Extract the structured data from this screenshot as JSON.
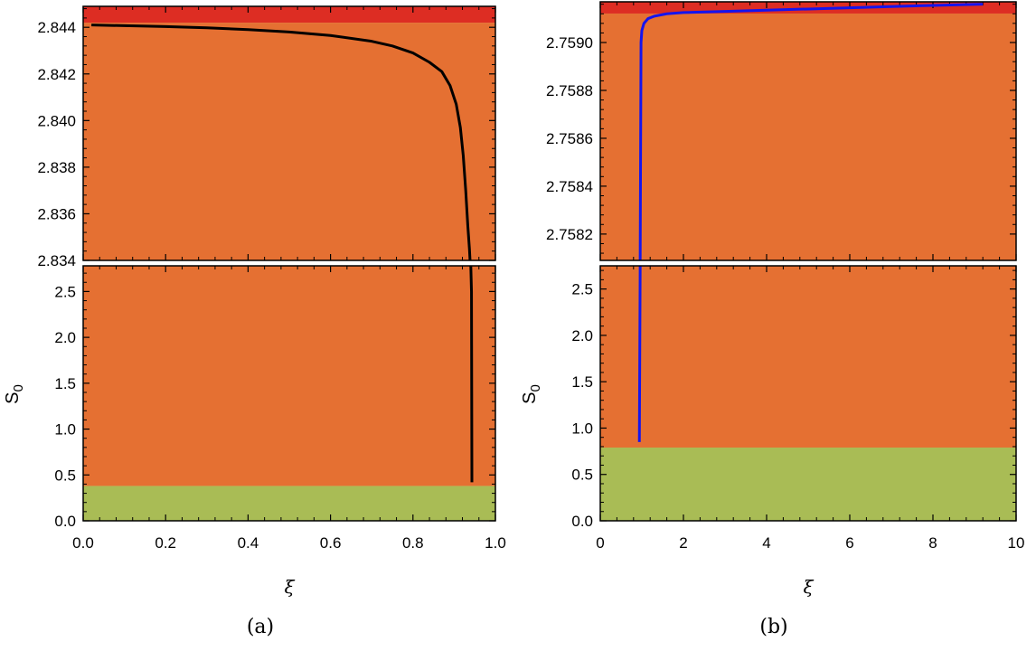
{
  "colors": {
    "red_region": "#dd2d23",
    "orange_region": "#e57032",
    "green_region": "#a9bc55",
    "series_a": "#000000",
    "series_b": "#1414ee"
  },
  "chart_data": [
    {
      "type": "line",
      "caption": "(a)",
      "xlabel": "ξ",
      "ylabel": "S",
      "ylabel_sub": "0",
      "xlim": [
        0,
        1.0
      ],
      "x_ticks": [
        "0.0",
        "0.2",
        "0.4",
        "0.6",
        "0.8",
        "1.0"
      ],
      "top_panel": {
        "ylim": [
          2.834,
          2.8449
        ],
        "y_ticks": [
          "2.834",
          "2.836",
          "2.838",
          "2.840",
          "2.842",
          "2.844"
        ],
        "regions": [
          {
            "name": "red",
            "y_from": 2.8442,
            "y_to": 2.8449
          },
          {
            "name": "orange",
            "y_from": 2.834,
            "y_to": 2.8442
          }
        ]
      },
      "bottom_panel": {
        "ylim": [
          0,
          2.78
        ],
        "y_ticks": [
          "0.0",
          "0.5",
          "1.0",
          "1.5",
          "2.0",
          "2.5"
        ],
        "regions": [
          {
            "name": "green",
            "y_from": 0,
            "y_to": 0.38
          },
          {
            "name": "orange",
            "y_from": 0.38,
            "y_to": 2.78
          }
        ]
      },
      "series": [
        {
          "color_key": "series_a",
          "x": [
            0.02,
            0.1,
            0.2,
            0.3,
            0.4,
            0.5,
            0.6,
            0.7,
            0.75,
            0.8,
            0.84,
            0.87,
            0.89,
            0.905,
            0.915,
            0.922,
            0.928,
            0.933,
            0.937,
            0.94,
            0.942,
            0.943
          ],
          "y": [
            2.8441,
            2.84407,
            2.84403,
            2.84398,
            2.8439,
            2.8438,
            2.84365,
            2.8434,
            2.8432,
            2.8429,
            2.8425,
            2.8421,
            2.8415,
            2.8407,
            2.8397,
            2.8385,
            2.837,
            2.8355,
            2.8345,
            2.8335,
            2.5,
            0.42
          ]
        }
      ]
    },
    {
      "type": "line",
      "caption": "(b)",
      "xlabel": "ξ",
      "ylabel": "S",
      "ylabel_sub": "0",
      "xlim": [
        0,
        10
      ],
      "x_ticks": [
        "0",
        "2",
        "4",
        "6",
        "8",
        "10"
      ],
      "top_panel": {
        "ylim": [
          2.75809,
          2.75917
        ],
        "y_ticks": [
          "2.7582",
          "2.7584",
          "2.7586",
          "2.7588",
          "2.7590"
        ],
        "regions": [
          {
            "name": "red",
            "y_from": 2.759121,
            "y_to": 2.75917
          },
          {
            "name": "orange",
            "y_from": 2.75809,
            "y_to": 2.759121
          }
        ]
      },
      "bottom_panel": {
        "ylim": [
          0,
          2.75
        ],
        "y_ticks": [
          "0.0",
          "0.5",
          "1.0",
          "1.5",
          "2.0",
          "2.5"
        ],
        "regions": [
          {
            "name": "green",
            "y_from": 0,
            "y_to": 0.79
          },
          {
            "name": "orange",
            "y_from": 0.79,
            "y_to": 2.75
          }
        ]
      },
      "series": [
        {
          "color_key": "series_b",
          "x": [
            0.94,
            0.96,
            0.98,
            1.0,
            1.05,
            1.15,
            1.3,
            1.6,
            2.0,
            3.0,
            4.0,
            5.0,
            6.0,
            7.0,
            8.0,
            9.2
          ],
          "y": [
            0.85,
            2.7581,
            2.759,
            2.75905,
            2.75908,
            2.7591,
            2.75911,
            2.75912,
            2.759125,
            2.75913,
            2.759135,
            2.75914,
            2.759145,
            2.75915,
            2.759155,
            2.75916
          ]
        }
      ]
    }
  ]
}
